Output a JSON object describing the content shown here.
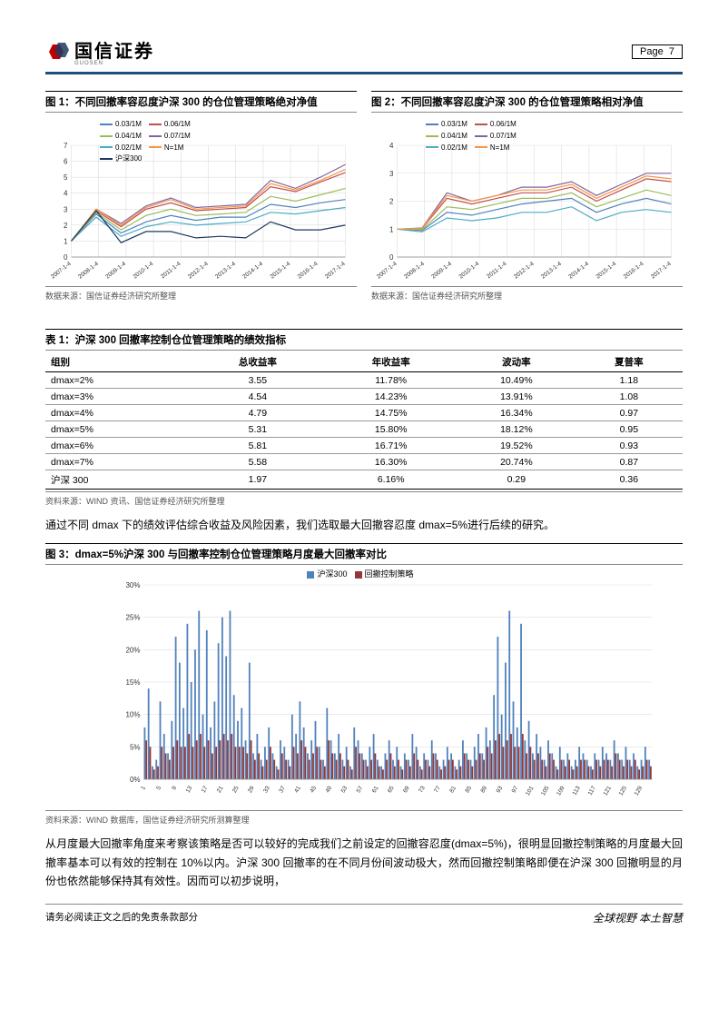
{
  "header": {
    "company_tag": "GUOSEN",
    "company_cn": "国信证券",
    "page_label": "Page",
    "page_num": "7"
  },
  "fig1": {
    "title": "图 1：不同回撤率容忍度沪深 300 的仓位管理策略绝对净值",
    "source": "数据来源：国信证券经济研究所整理",
    "y_min": 0,
    "y_max": 7,
    "y_step": 1,
    "x_labels": [
      "2007-1-4",
      "2008-1-4",
      "2009-1-4",
      "2010-1-4",
      "2011-1-4",
      "2012-1-4",
      "2013-1-4",
      "2014-1-4",
      "2015-1-4",
      "2016-1-4",
      "2017-1-4"
    ],
    "series": [
      {
        "label": "0.03/1M",
        "color": "#4f81bd",
        "data": [
          1.0,
          2.7,
          1.5,
          2.2,
          2.6,
          2.3,
          2.5,
          2.5,
          3.3,
          3.1,
          3.4,
          3.6
        ]
      },
      {
        "label": "0.06/1M",
        "color": "#c0504d",
        "data": [
          1.0,
          2.9,
          1.9,
          3.0,
          3.4,
          2.9,
          3.0,
          3.1,
          4.4,
          4.1,
          4.7,
          5.3
        ]
      },
      {
        "label": "0.04/1M",
        "color": "#9bbb59",
        "data": [
          1.0,
          2.8,
          1.7,
          2.6,
          3.0,
          2.6,
          2.7,
          2.8,
          3.8,
          3.5,
          3.9,
          4.3
        ]
      },
      {
        "label": "0.07/1M",
        "color": "#8064a2",
        "data": [
          1.0,
          3.0,
          2.1,
          3.2,
          3.7,
          3.1,
          3.2,
          3.3,
          4.8,
          4.3,
          5.0,
          5.8
        ]
      },
      {
        "label": "0.02/1M",
        "color": "#4bacc6",
        "data": [
          1.0,
          2.5,
          1.3,
          1.9,
          2.2,
          2.0,
          2.1,
          2.2,
          2.8,
          2.7,
          2.9,
          3.1
        ]
      },
      {
        "label": "N=1M",
        "color": "#f79646",
        "data": [
          1.0,
          3.0,
          2.0,
          3.1,
          3.6,
          3.0,
          3.1,
          3.2,
          4.6,
          4.2,
          4.8,
          5.5
        ]
      },
      {
        "label": "沪深300",
        "color": "#1f3a5f",
        "data": [
          1.0,
          2.9,
          0.9,
          1.6,
          1.6,
          1.2,
          1.3,
          1.2,
          2.2,
          1.7,
          1.7,
          2.0
        ]
      }
    ]
  },
  "fig2": {
    "title": "图 2：不同回撤率容忍度沪深 300 的仓位管理策略相对净值",
    "source": "数据来源：国信证券经济研究所整理",
    "y_min": 0,
    "y_max": 4,
    "y_step": 1,
    "x_labels": [
      "2007-1-4",
      "2008-1-4",
      "2009-1-4",
      "2010-1-4",
      "2011-1-4",
      "2012-1-4",
      "2013-1-4",
      "2014-1-4",
      "2015-1-4",
      "2016-1-4",
      "2017-1-4"
    ],
    "series": [
      {
        "label": "0.03/1M",
        "color": "#4f81bd",
        "data": [
          1.0,
          0.95,
          1.6,
          1.5,
          1.7,
          1.9,
          2.0,
          2.1,
          1.6,
          1.9,
          2.1,
          1.9
        ]
      },
      {
        "label": "0.06/1M",
        "color": "#c0504d",
        "data": [
          1.0,
          1.02,
          2.1,
          1.9,
          2.1,
          2.3,
          2.3,
          2.5,
          2.0,
          2.4,
          2.8,
          2.7
        ]
      },
      {
        "label": "0.04/1M",
        "color": "#9bbb59",
        "data": [
          1.0,
          0.98,
          1.8,
          1.7,
          1.9,
          2.1,
          2.1,
          2.3,
          1.8,
          2.1,
          2.4,
          2.2
        ]
      },
      {
        "label": "0.07/1M",
        "color": "#8064a2",
        "data": [
          1.0,
          1.04,
          2.3,
          2.0,
          2.2,
          2.5,
          2.5,
          2.7,
          2.2,
          2.6,
          3.0,
          3.0
        ]
      },
      {
        "label": "0.02/1M",
        "color": "#4bacc6",
        "data": [
          1.0,
          0.9,
          1.4,
          1.3,
          1.4,
          1.6,
          1.6,
          1.8,
          1.3,
          1.6,
          1.7,
          1.6
        ]
      },
      {
        "label": "N=1M",
        "color": "#f79646",
        "data": [
          1.0,
          1.03,
          2.2,
          2.0,
          2.2,
          2.4,
          2.4,
          2.6,
          2.1,
          2.5,
          2.9,
          2.8
        ]
      }
    ]
  },
  "table1": {
    "title": "表 1：沪深 300 回撤率控制仓位管理策略的绩效指标",
    "source": "资料来源：WIND 资讯、国信证券经济研究所整理",
    "columns": [
      "组别",
      "总收益率",
      "年收益率",
      "波动率",
      "夏普率"
    ],
    "rows": [
      [
        "dmax=2%",
        "3.55",
        "11.78%",
        "10.49%",
        "1.18"
      ],
      [
        "dmax=3%",
        "4.54",
        "14.23%",
        "13.91%",
        "1.08"
      ],
      [
        "dmax=4%",
        "4.79",
        "14.75%",
        "16.34%",
        "0.97"
      ],
      [
        "dmax=5%",
        "5.31",
        "15.80%",
        "18.12%",
        "0.95"
      ],
      [
        "dmax=6%",
        "5.81",
        "16.71%",
        "19.52%",
        "0.93"
      ],
      [
        "dmax=7%",
        "5.58",
        "16.30%",
        "20.74%",
        "0.87"
      ],
      [
        "沪深 300",
        "1.97",
        "6.16%",
        "0.29",
        "0.36"
      ]
    ]
  },
  "para1": "通过不同 dmax 下的绩效评估综合收益及风险因素，我们选取最大回撤容忍度 dmax=5%进行后续的研究。",
  "fig3": {
    "title": "图 3：dmax=5%沪深 300 与回撤率控制仓位管理策略月度最大回撤率对比",
    "source": "资料来源：WIND 数据库，国信证券经济研究所测算整理",
    "y_ticks": [
      "0%",
      "5%",
      "10%",
      "15%",
      "20%",
      "25%",
      "30%"
    ],
    "y_max": 30,
    "x_start": 1,
    "x_step": 4,
    "x_end": 129,
    "legend": [
      {
        "label": "沪深300",
        "color": "#4f81bd"
      },
      {
        "label": "回撤控制策略",
        "color": "#953735"
      }
    ],
    "series_a_color": "#4f81bd",
    "series_b_color": "#953735",
    "series_a": [
      8,
      14,
      2,
      3,
      12,
      7,
      4,
      9,
      22,
      18,
      11,
      24,
      15,
      20,
      26,
      10,
      23,
      8,
      12,
      21,
      25,
      19,
      26,
      13,
      9,
      11,
      6,
      18,
      4,
      7,
      3,
      5,
      8,
      4,
      2,
      6,
      5,
      3,
      10,
      7,
      12,
      8,
      4,
      6,
      9,
      5,
      3,
      11,
      6,
      4,
      7,
      3,
      5,
      2,
      8,
      6,
      4,
      3,
      5,
      7,
      3,
      2,
      4,
      6,
      3,
      5,
      2,
      4,
      3,
      7,
      5,
      2,
      4,
      3,
      6,
      4,
      2,
      3,
      5,
      4,
      2,
      3,
      6,
      4,
      3,
      5,
      7,
      4,
      8,
      6,
      13,
      22,
      10,
      18,
      26,
      12,
      8,
      24,
      6,
      9,
      4,
      7,
      5,
      3,
      6,
      4,
      2,
      5,
      3,
      4,
      2,
      3,
      5,
      4,
      3,
      2,
      4,
      3,
      5,
      4,
      3,
      6,
      4,
      3,
      5,
      3,
      4,
      2,
      3,
      5,
      3
    ],
    "series_b": [
      6,
      5,
      1.5,
      2,
      5,
      4,
      3,
      5,
      6,
      5,
      5,
      7,
      5,
      6,
      7,
      5,
      6,
      4,
      5,
      6,
      7,
      6,
      7,
      5,
      5,
      5,
      4,
      6,
      3,
      4,
      2,
      3,
      5,
      3,
      1.5,
      4,
      3,
      2,
      5,
      4,
      6,
      5,
      3,
      4,
      5,
      3,
      2,
      6,
      4,
      3,
      4,
      2,
      3,
      1.5,
      5,
      4,
      3,
      2,
      3,
      4,
      2,
      1.5,
      3,
      4,
      2,
      3,
      1.5,
      3,
      2,
      4,
      3,
      1.5,
      3,
      2,
      4,
      3,
      1.5,
      2,
      3,
      3,
      1.5,
      2,
      4,
      3,
      2,
      3,
      4,
      3,
      5,
      4,
      6,
      7,
      5,
      6,
      7,
      5,
      5,
      7,
      4,
      5,
      3,
      4,
      3,
      2,
      4,
      3,
      1.5,
      3,
      2,
      3,
      1.5,
      2,
      3,
      3,
      2,
      1.5,
      3,
      2,
      3,
      3,
      2,
      4,
      3,
      2,
      3,
      2,
      3,
      1.5,
      2,
      3,
      2
    ]
  },
  "para2": "从月度最大回撤率角度来考察该策略是否可以较好的完成我们之前设定的回撤容忍度(dmax=5%)，很明显回撤控制策略的月度最大回撤率基本可以有效的控制在 10%以内。沪深 300 回撤率的在不同月份间波动极大，然而回撤控制策略即便在沪深 300 回撤明显的月份也依然能够保持其有效性。因而可以初步说明，",
  "footer": {
    "left": "请务必阅读正文之后的免责条款部分",
    "right": "全球视野  本土智慧"
  }
}
